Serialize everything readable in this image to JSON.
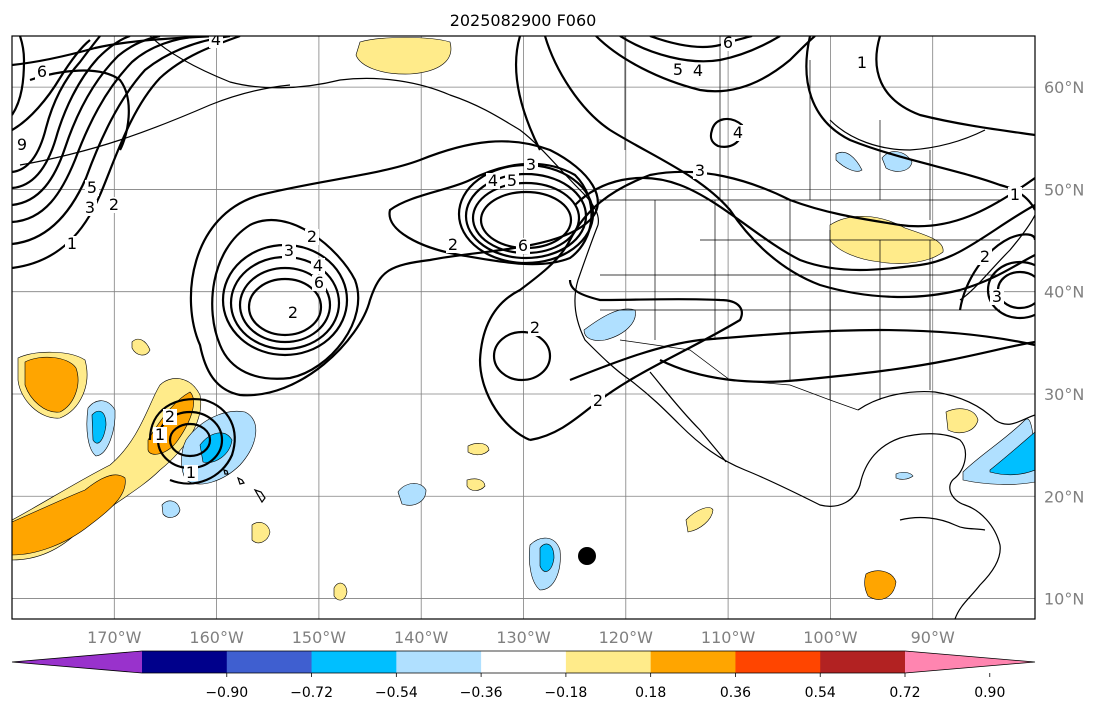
{
  "title": "2025082900 F060",
  "map": {
    "lon_ticks": [
      "170°W",
      "160°W",
      "150°W",
      "140°W",
      "130°W",
      "120°W",
      "110°W",
      "100°W",
      "90°W"
    ],
    "lat_ticks": [
      "60°N",
      "50°N",
      "40°N",
      "30°N",
      "20°N",
      "10°N"
    ],
    "lon_range": [
      -180,
      -80
    ],
    "lat_range": [
      8,
      65
    ],
    "projection": "PlateCarree",
    "grid": true,
    "colors": {
      "coast": "#000000",
      "contour": "#000000",
      "grid": "#808080"
    }
  },
  "colorbar": {
    "ticks": [
      "−0.90",
      "−0.72",
      "−0.54",
      "−0.36",
      "−0.18",
      "0.18",
      "0.36",
      "0.54",
      "0.72",
      "0.90"
    ],
    "colors": [
      "#9932cc",
      "#00008b",
      "#3f5fd0",
      "#00bfff",
      "#b0e0ff",
      "#ffffff",
      "#ffeb8a",
      "#ffa500",
      "#ff4500",
      "#b22222",
      "#ff85b0"
    ]
  },
  "contour_labels": [
    "4",
    "6",
    "9",
    "5",
    "3",
    "2",
    "1",
    "2",
    "3",
    "4",
    "6",
    "2",
    "4",
    "5",
    "3",
    "6",
    "2",
    "2",
    "1",
    "2",
    "1",
    "1",
    "6",
    "5",
    "4",
    "4",
    "3",
    "1",
    "2",
    "2",
    "3"
  ]
}
